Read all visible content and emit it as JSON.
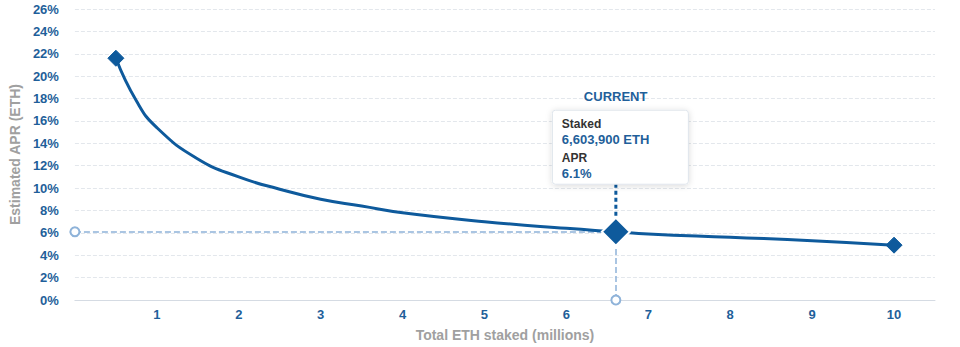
{
  "chart_data": {
    "type": "line",
    "x_label": "Total ETH staked (millions)",
    "y_label": "Estimated APR (ETH)",
    "x": [
      0.5,
      0.75,
      1,
      1.5,
      2,
      2.5,
      3,
      3.5,
      4,
      5,
      6,
      6.6039,
      7,
      8,
      9,
      10
    ],
    "values": [
      21.6,
      17.8,
      15.4,
      12.6,
      11.0,
      9.9,
      9.0,
      8.4,
      7.8,
      7.0,
      6.4,
      6.1,
      5.9,
      5.6,
      5.3,
      4.9
    ],
    "color": "#0e5a9c",
    "marker": "diamond",
    "line_style": "solid",
    "xlim": [
      0,
      10.5
    ],
    "xticks": [
      1,
      2,
      3,
      4,
      5,
      6,
      7,
      8,
      9,
      10
    ],
    "ylim": [
      0,
      26
    ],
    "yticks": [
      {
        "value": 0,
        "label": "0%"
      },
      {
        "value": 2,
        "label": "2%"
      },
      {
        "value": 4,
        "label": "4%"
      },
      {
        "value": 6,
        "label": "6%"
      },
      {
        "value": 8,
        "label": "8%"
      },
      {
        "value": 10,
        "label": "10%"
      },
      {
        "value": 12,
        "label": "12%"
      },
      {
        "value": 14,
        "label": "14%"
      },
      {
        "value": 16,
        "label": "16%"
      },
      {
        "value": 18,
        "label": "18%"
      },
      {
        "value": 20,
        "label": "20%"
      },
      {
        "value": 22,
        "label": "22%"
      },
      {
        "value": 24,
        "label": "24%"
      },
      {
        "value": 26,
        "label": "26%"
      }
    ],
    "grid": true,
    "annotations": [
      {
        "text": "CURRENT",
        "x": 6.6039,
        "y": 6.1,
        "lines": [
          "Staked",
          "6,603,900 ETH",
          "APR",
          "6.1%"
        ]
      }
    ]
  }
}
